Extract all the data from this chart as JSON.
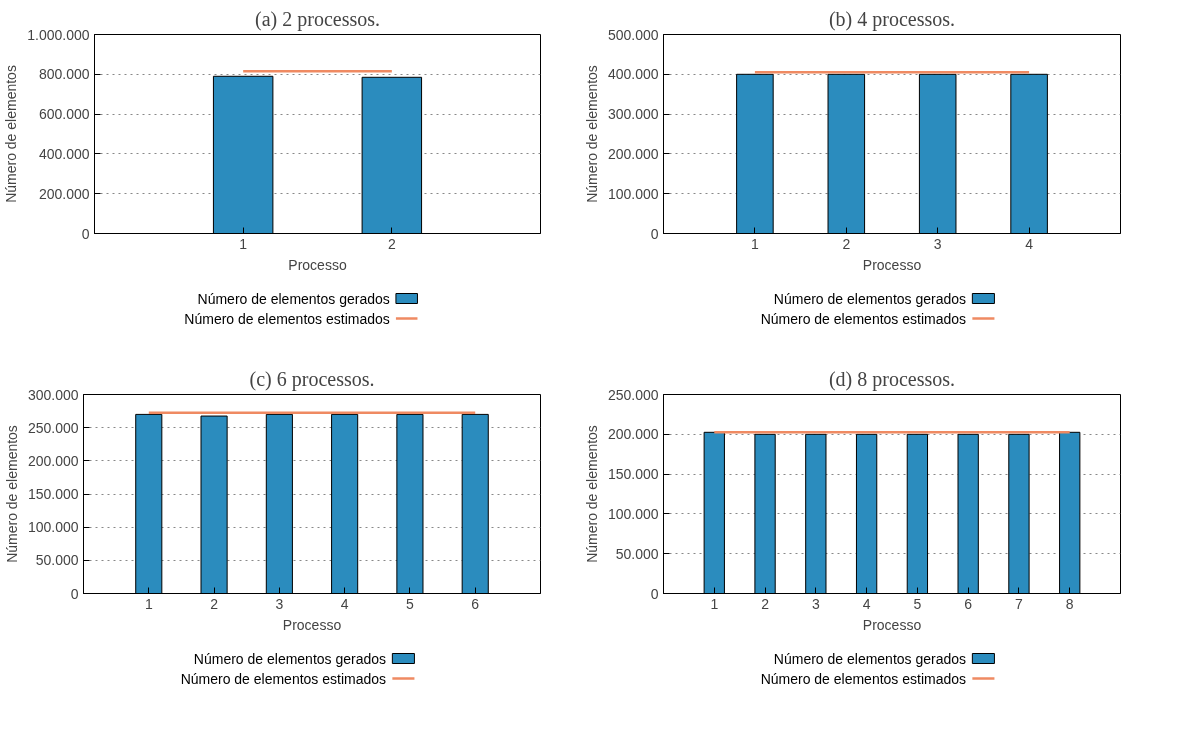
{
  "chart_data": [
    {
      "type": "bar",
      "title": "(a) 2 processos.",
      "xlabel": "Processo",
      "ylabel": "Número de elementos",
      "x": [
        1,
        2
      ],
      "xlim": [
        0,
        3
      ],
      "xticks": [
        1,
        2
      ],
      "ylim": [
        0,
        1000000
      ],
      "yticks": [
        {
          "value": 0,
          "label": "0"
        },
        {
          "value": 200000,
          "label": "200.000"
        },
        {
          "value": 400000,
          "label": "400.000"
        },
        {
          "value": 600000,
          "label": "600.000"
        },
        {
          "value": 800000,
          "label": "800.000"
        },
        {
          "value": 1000000,
          "label": "1.000.000"
        }
      ],
      "grid": "y",
      "legend": "bottom",
      "series": [
        {
          "name": "Número de elementos gerados",
          "color": "#2b8cbe",
          "values": [
            790000,
            785000
          ]
        },
        {
          "name": "Número de elementos estimados",
          "type": "line",
          "color": "#ef8a62",
          "values": [
            815000,
            815000
          ]
        }
      ]
    },
    {
      "type": "bar",
      "title": "(b) 4 processos.",
      "xlabel": "Processo",
      "ylabel": "Número de elementos",
      "x": [
        1,
        2,
        3,
        4
      ],
      "xlim": [
        0,
        5
      ],
      "xticks": [
        1,
        2,
        3,
        4
      ],
      "ylim": [
        0,
        500000
      ],
      "yticks": [
        {
          "value": 0,
          "label": "0"
        },
        {
          "value": 100000,
          "label": "100.000"
        },
        {
          "value": 200000,
          "label": "200.000"
        },
        {
          "value": 300000,
          "label": "300.000"
        },
        {
          "value": 400000,
          "label": "400.000"
        },
        {
          "value": 500000,
          "label": "500.000"
        }
      ],
      "grid": "y",
      "legend": "bottom",
      "series": [
        {
          "name": "Número de elementos gerados",
          "color": "#2b8cbe",
          "values": [
            400000,
            400000,
            400000,
            400000
          ]
        },
        {
          "name": "Número de elementos estimados",
          "type": "line",
          "color": "#ef8a62",
          "values": [
            405000,
            405000,
            405000,
            405000
          ]
        }
      ]
    },
    {
      "type": "bar",
      "title": "(c) 6 processos.",
      "xlabel": "Processo",
      "ylabel": "Número de elementos",
      "x": [
        1,
        2,
        3,
        4,
        5,
        6
      ],
      "xlim": [
        0,
        7
      ],
      "xticks": [
        1,
        2,
        3,
        4,
        5,
        6
      ],
      "ylim": [
        0,
        300000
      ],
      "yticks": [
        {
          "value": 0,
          "label": "0"
        },
        {
          "value": 50000,
          "label": "50.000"
        },
        {
          "value": 100000,
          "label": "100.000"
        },
        {
          "value": 150000,
          "label": "150.000"
        },
        {
          "value": 200000,
          "label": "200.000"
        },
        {
          "value": 250000,
          "label": "250.000"
        },
        {
          "value": 300000,
          "label": "300.000"
        }
      ],
      "grid": "y",
      "legend": "bottom",
      "series": [
        {
          "name": "Número de elementos gerados",
          "color": "#2b8cbe",
          "values": [
            270000,
            267500,
            270000,
            270000,
            270000,
            270000
          ]
        },
        {
          "name": "Número de elementos estimados",
          "type": "line",
          "color": "#ef8a62",
          "values": [
            272500,
            272500,
            272500,
            272500,
            272500,
            272500
          ]
        }
      ]
    },
    {
      "type": "bar",
      "title": "(d) 8 processos.",
      "xlabel": "Processo",
      "ylabel": "Número de elementos",
      "x": [
        1,
        2,
        3,
        4,
        5,
        6,
        7,
        8
      ],
      "xlim": [
        0,
        9
      ],
      "xticks": [
        1,
        2,
        3,
        4,
        5,
        6,
        7,
        8
      ],
      "ylim": [
        0,
        250000
      ],
      "yticks": [
        {
          "value": 0,
          "label": "0"
        },
        {
          "value": 50000,
          "label": "50.000"
        },
        {
          "value": 100000,
          "label": "100.000"
        },
        {
          "value": 150000,
          "label": "150.000"
        },
        {
          "value": 200000,
          "label": "200.000"
        },
        {
          "value": 250000,
          "label": "250.000"
        }
      ],
      "grid": "y",
      "legend": "bottom",
      "series": [
        {
          "name": "Número de elementos gerados",
          "color": "#2b8cbe",
          "values": [
            202500,
            200000,
            200000,
            200000,
            200000,
            200000,
            200000,
            202500
          ]
        },
        {
          "name": "Número de elementos estimados",
          "type": "line",
          "color": "#ef8a62",
          "values": [
            202500,
            202500,
            202500,
            202500,
            202500,
            202500,
            202500,
            202500
          ]
        }
      ]
    }
  ]
}
